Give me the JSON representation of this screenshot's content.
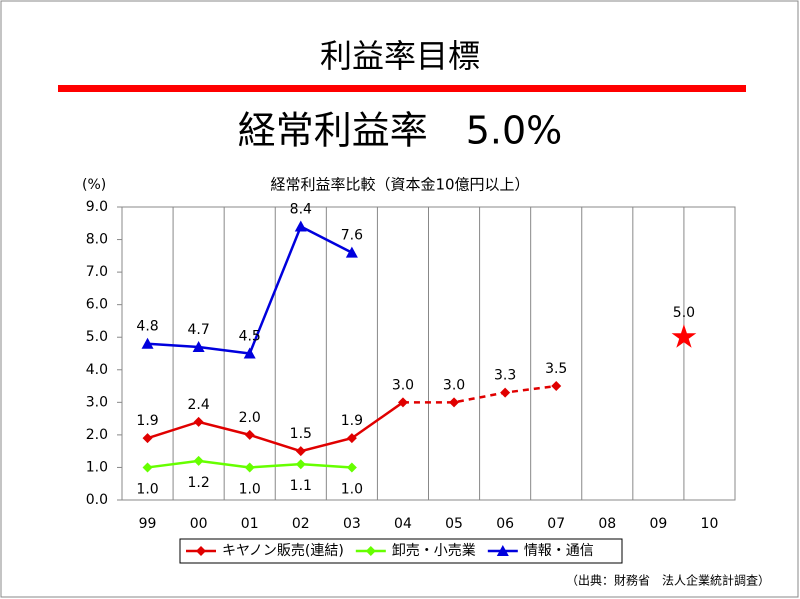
{
  "chart_data": {
    "type": "line",
    "page_title": "利益率目標",
    "headline": "経常利益率　5.0%",
    "title": "経常利益率比較（資本金10億円以上）",
    "y_unit_label": "(%)",
    "source": "（出典：財務省　法人企業統計調査）",
    "categories": [
      "99",
      "00",
      "01",
      "02",
      "03",
      "04",
      "05",
      "06",
      "07",
      "08",
      "09",
      "10"
    ],
    "ylim": [
      0,
      9
    ],
    "yticks": [
      {
        "value": 0,
        "label": "0.0"
      },
      {
        "value": 1,
        "label": "1.0"
      },
      {
        "value": 2,
        "label": "2.0"
      },
      {
        "value": 3,
        "label": "3.0"
      },
      {
        "value": 4,
        "label": "4.0"
      },
      {
        "value": 5,
        "label": "5.0"
      },
      {
        "value": 6,
        "label": "6.0"
      },
      {
        "value": 7,
        "label": "7.0"
      },
      {
        "value": 8,
        "label": "8.0"
      },
      {
        "value": 9,
        "label": "9.0"
      }
    ],
    "x_grid": true,
    "legend": "bottom",
    "series": [
      {
        "name": "キヤノン販売(連結)",
        "color": "#e00000",
        "marker": "diamond",
        "label_side": "above",
        "dash_from": 5,
        "values": [
          1.9,
          2.4,
          2.0,
          1.5,
          1.9,
          3.0,
          3.0,
          3.3,
          3.5,
          null,
          null,
          null
        ],
        "value_labels": [
          "1.9",
          "2.4",
          "2.0",
          "1.5",
          "1.9",
          "3.0",
          "3.0",
          "3.3",
          "3.5",
          null,
          null,
          null
        ]
      },
      {
        "name": "卸売・小売業",
        "color": "#66ff00",
        "marker": "diamond",
        "label_side": "below",
        "values": [
          1.0,
          1.2,
          1.0,
          1.1,
          1.0,
          null,
          null,
          null,
          null,
          null,
          null,
          null
        ],
        "value_labels": [
          "1.0",
          "1.2",
          "1.0",
          "1.1",
          "1.0",
          null,
          null,
          null,
          null,
          null,
          null,
          null
        ]
      },
      {
        "name": "情報・通信",
        "color": "#0000dd",
        "marker": "triangle",
        "label_side": "above",
        "values": [
          4.8,
          4.7,
          4.5,
          8.4,
          7.6,
          null,
          null,
          null,
          null,
          null,
          null,
          null
        ],
        "value_labels": [
          "4.8",
          "4.7",
          "4.5",
          "8.4",
          "7.6",
          null,
          null,
          null,
          null,
          null,
          null,
          null
        ]
      }
    ],
    "target": {
      "value": 5.0,
      "value_label": "5.0",
      "color": "#ff0000",
      "marker": "star"
    }
  }
}
